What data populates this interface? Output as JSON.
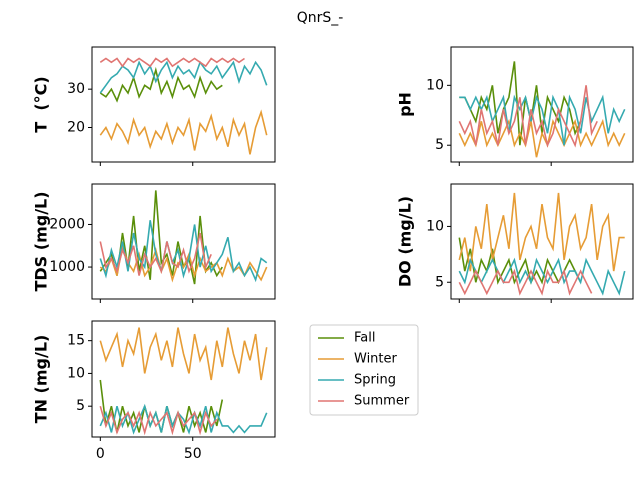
{
  "title": "QnrS_-",
  "chart_data": [
    {
      "type": "line",
      "ylabel": "T  (°C)",
      "x": [
        0,
        3,
        6,
        9,
        12,
        15,
        18,
        21,
        24,
        27,
        30,
        33,
        36,
        39,
        42,
        45,
        48,
        51,
        54,
        57,
        60,
        63,
        66,
        69,
        72,
        75,
        78,
        81,
        84,
        87,
        90
      ],
      "xlim": [
        -4.5,
        94.5
      ],
      "ylim": [
        11,
        41
      ],
      "yticks": [
        20,
        30
      ],
      "series": [
        {
          "name": "Fall",
          "color": "#5a8f0a",
          "values": [
            29,
            28,
            30,
            27,
            31,
            29,
            33,
            28,
            31,
            30,
            35,
            29,
            32,
            28,
            33,
            30,
            31,
            28,
            33,
            29,
            32,
            30,
            31,
            null,
            null,
            null,
            null,
            null,
            null,
            null,
            null
          ]
        },
        {
          "name": "Winter",
          "color": "#e69c35",
          "values": [
            18,
            20,
            17,
            21,
            19,
            16,
            22,
            18,
            20,
            15,
            19,
            17,
            21,
            16,
            20,
            18,
            22,
            14,
            21,
            19,
            23,
            17,
            20,
            15,
            22,
            18,
            21,
            13,
            20,
            24,
            18
          ]
        },
        {
          "name": "Spring",
          "color": "#35aab0",
          "values": [
            29,
            31,
            33,
            34,
            36,
            35,
            33,
            37,
            34,
            36,
            32,
            35,
            37,
            33,
            36,
            34,
            35,
            33,
            37,
            35,
            34,
            36,
            33,
            35,
            37,
            32,
            36,
            34,
            37,
            35,
            31
          ]
        },
        {
          "name": "Summer",
          "color": "#e07572",
          "values": [
            37,
            38,
            37,
            38,
            36,
            38,
            37,
            38,
            37,
            36,
            38,
            37,
            38,
            36,
            37,
            38,
            37,
            38,
            37,
            36,
            38,
            37,
            38,
            37,
            38,
            37,
            38,
            null,
            null,
            null,
            null
          ]
        }
      ]
    },
    {
      "type": "line",
      "ylabel": "pH",
      "x": [
        0,
        3,
        6,
        9,
        12,
        15,
        18,
        21,
        24,
        27,
        30,
        33,
        36,
        39,
        42,
        45,
        48,
        51,
        54,
        57,
        60,
        63,
        66,
        69,
        72,
        75,
        78,
        81,
        84,
        87,
        90
      ],
      "xlim": [
        -4.5,
        94.5
      ],
      "ylim": [
        3.6,
        13.2
      ],
      "yticks": [
        5,
        10
      ],
      "series": [
        {
          "name": "Fall",
          "color": "#5a8f0a",
          "values": [
            9,
            9,
            8,
            7,
            9,
            8,
            10,
            6,
            8,
            9,
            12,
            5,
            9,
            7,
            10,
            6,
            9,
            8,
            7,
            9,
            8,
            6,
            7,
            null,
            null,
            null,
            null,
            null,
            null,
            null,
            null
          ]
        },
        {
          "name": "Winter",
          "color": "#e69c35",
          "values": [
            6,
            5,
            6,
            5,
            7,
            5,
            6,
            5,
            6,
            7,
            5,
            6,
            5,
            7,
            4,
            6,
            5,
            7,
            6,
            5,
            6,
            7,
            5,
            6,
            5,
            6,
            7,
            5,
            6,
            5,
            6
          ]
        },
        {
          "name": "Spring",
          "color": "#35aab0",
          "values": [
            9,
            9,
            8,
            9,
            8,
            9,
            7,
            8,
            9,
            6,
            9,
            8,
            9,
            7,
            9,
            8,
            6,
            9,
            8,
            5,
            9,
            8,
            6,
            9,
            7,
            8,
            9,
            6,
            8,
            7,
            8
          ]
        },
        {
          "name": "Summer",
          "color": "#e07572",
          "values": [
            7,
            6,
            7,
            5,
            8,
            6,
            7,
            5,
            8,
            6,
            7,
            9,
            5,
            8,
            6,
            7,
            5,
            6,
            8,
            7,
            6,
            5,
            7,
            10,
            6,
            7,
            null,
            null,
            null,
            null,
            null
          ]
        }
      ]
    },
    {
      "type": "line",
      "ylabel": "TDS (mg/L)",
      "x": [
        0,
        3,
        6,
        9,
        12,
        15,
        18,
        21,
        24,
        27,
        30,
        33,
        36,
        39,
        42,
        45,
        48,
        51,
        54,
        57,
        60,
        63,
        66,
        69,
        72,
        75,
        78,
        81,
        84,
        87,
        90
      ],
      "xlim": [
        -4.5,
        94.5
      ],
      "ylim": [
        250,
        2950
      ],
      "yticks": [
        1000,
        2000
      ],
      "series": [
        {
          "name": "Fall",
          "color": "#5a8f0a",
          "values": [
            900,
            1100,
            1300,
            800,
            1800,
            1000,
            2200,
            900,
            1500,
            700,
            2800,
            1100,
            1300,
            800,
            1600,
            1000,
            1200,
            600,
            2200,
            900,
            1100,
            800,
            1000,
            null,
            null,
            null,
            null,
            null,
            null,
            null,
            null
          ]
        },
        {
          "name": "Winter",
          "color": "#e69c35",
          "values": [
            1000,
            900,
            1200,
            800,
            1500,
            1100,
            900,
            1300,
            800,
            1000,
            1400,
            900,
            1200,
            700,
            1100,
            1000,
            1300,
            800,
            1200,
            900,
            1000,
            1100,
            800,
            1200,
            900,
            1000,
            800,
            1100,
            900,
            700,
            1000
          ]
        },
        {
          "name": "Spring",
          "color": "#35aab0",
          "values": [
            1200,
            800,
            1400,
            1000,
            1600,
            900,
            1800,
            1200,
            1000,
            2100,
            1300,
            900,
            1600,
            1100,
            1400,
            800,
            1200,
            2000,
            1000,
            1500,
            900,
            1100,
            1300,
            1700,
            900,
            1100,
            800,
            1000,
            700,
            1200,
            1100
          ]
        },
        {
          "name": "Summer",
          "color": "#e07572",
          "values": [
            1600,
            1000,
            1200,
            900,
            1400,
            1100,
            1500,
            800,
            1300,
            1000,
            1200,
            900,
            1600,
            1100,
            1000,
            1400,
            900,
            1200,
            1800,
            1000,
            1300,
            null,
            null,
            null,
            null,
            null,
            null,
            null,
            null,
            null,
            null
          ]
        }
      ]
    },
    {
      "type": "line",
      "ylabel": "DO (mg/L)",
      "x": [
        0,
        3,
        6,
        9,
        12,
        15,
        18,
        21,
        24,
        27,
        30,
        33,
        36,
        39,
        42,
        45,
        48,
        51,
        54,
        57,
        60,
        63,
        66,
        69,
        72,
        75,
        78,
        81,
        84,
        87,
        90
      ],
      "xlim": [
        -4.5,
        94.5
      ],
      "ylim": [
        3.5,
        13.8
      ],
      "yticks": [
        5,
        10
      ],
      "series": [
        {
          "name": "Fall",
          "color": "#5a8f0a",
          "values": [
            9,
            6,
            8,
            5,
            7,
            6,
            8,
            5,
            6,
            7,
            5,
            6,
            7,
            5,
            6,
            5,
            7,
            6,
            5,
            6,
            7,
            6,
            5,
            null,
            null,
            null,
            null,
            null,
            null,
            null,
            null
          ]
        },
        {
          "name": "Winter",
          "color": "#e69c35",
          "values": [
            7,
            9,
            6,
            10,
            8,
            12,
            7,
            9,
            11,
            8,
            13,
            7,
            9,
            10,
            8,
            12,
            9,
            8,
            13,
            7,
            10,
            11,
            8,
            9,
            12,
            7,
            10,
            11,
            6,
            9,
            9
          ]
        },
        {
          "name": "Spring",
          "color": "#35aab0",
          "values": [
            6,
            5,
            7,
            6,
            5,
            6,
            7,
            6,
            5,
            6,
            7,
            5,
            6,
            5,
            7,
            6,
            5,
            6,
            7,
            5,
            6,
            6,
            5,
            7,
            6,
            5,
            4,
            6,
            5,
            4,
            6
          ]
        },
        {
          "name": "Summer",
          "color": "#e07572",
          "values": [
            5,
            4,
            5,
            6,
            5,
            4,
            5,
            6,
            5,
            5,
            6,
            4,
            5,
            6,
            5,
            4,
            6,
            5,
            5,
            6,
            4,
            5,
            6,
            5,
            4,
            null,
            null,
            null,
            null,
            null,
            null
          ]
        }
      ]
    },
    {
      "type": "line",
      "ylabel": "TN (mg/L)",
      "x": [
        0,
        3,
        6,
        9,
        12,
        15,
        18,
        21,
        24,
        27,
        30,
        33,
        36,
        39,
        42,
        45,
        48,
        51,
        54,
        57,
        60,
        63,
        66,
        69,
        72,
        75,
        78,
        81,
        84,
        87,
        90
      ],
      "xlim": [
        -4.5,
        94.5
      ],
      "ylim": [
        0.3,
        18
      ],
      "yticks": [
        5,
        10,
        15
      ],
      "xticks": [
        0,
        50
      ],
      "series": [
        {
          "name": "Fall",
          "color": "#5a8f0a",
          "values": [
            9,
            2,
            5,
            1,
            5,
            2,
            4,
            1,
            5,
            2,
            4,
            1,
            5,
            2,
            4,
            1,
            5,
            2,
            4,
            1,
            5,
            2,
            6,
            null,
            null,
            null,
            null,
            null,
            null,
            null,
            null
          ]
        },
        {
          "name": "Winter",
          "color": "#e69c35",
          "values": [
            15,
            12,
            14,
            16,
            11,
            15,
            13,
            17,
            10,
            14,
            16,
            12,
            15,
            11,
            17,
            13,
            10,
            16,
            12,
            14,
            9,
            15,
            11,
            17,
            13,
            10,
            15,
            12,
            16,
            9,
            14
          ]
        },
        {
          "name": "Spring",
          "color": "#35aab0",
          "values": [
            2,
            4,
            1,
            5,
            2,
            4,
            1,
            3,
            5,
            2,
            4,
            1,
            5,
            2,
            4,
            3,
            1,
            4,
            2,
            5,
            1,
            4,
            2,
            2,
            1,
            2,
            1,
            2,
            2,
            2,
            4
          ]
        },
        {
          "name": "Summer",
          "color": "#e07572",
          "values": [
            5,
            2,
            4,
            1,
            3,
            4,
            2,
            4,
            1,
            4,
            2,
            3,
            4,
            1,
            4,
            2,
            3,
            4,
            1,
            4,
            2,
            3,
            null,
            null,
            null,
            null,
            null,
            null,
            null,
            null,
            null
          ]
        }
      ]
    }
  ]
}
